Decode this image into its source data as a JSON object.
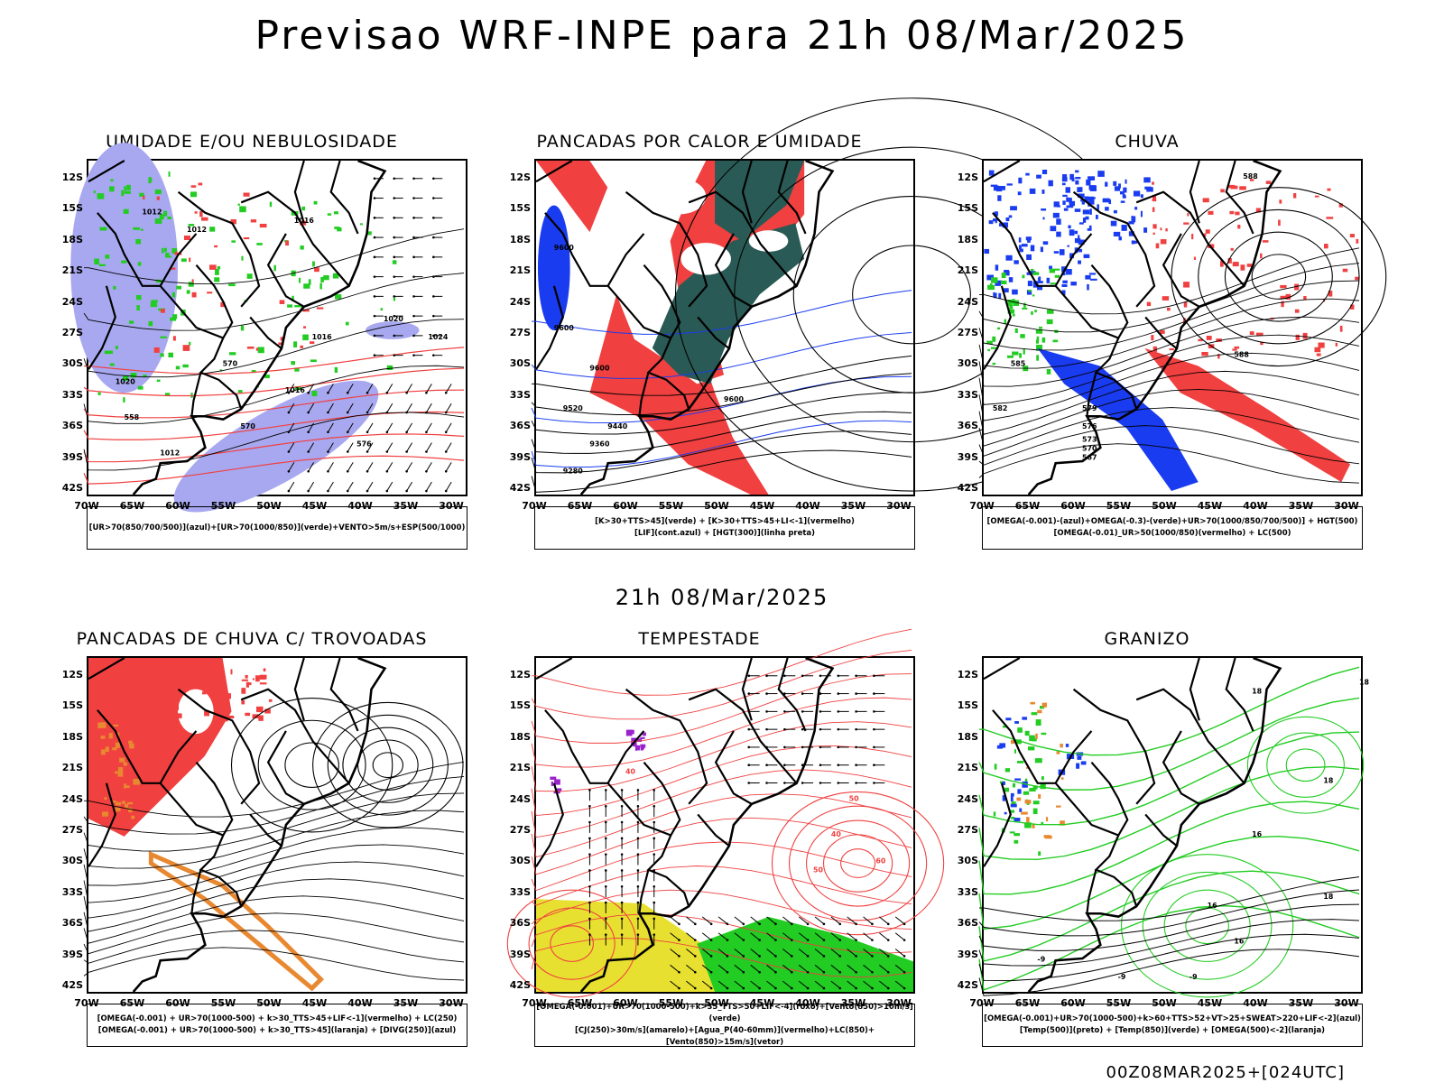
{
  "title": "Previsao WRF-INPE  para 21h 08/Mar/2025",
  "mid_date": "21h 08/Mar/2025",
  "run_id": "00Z08MAR2025+[024UTC]",
  "lat_labels": [
    "12S",
    "15S",
    "18S",
    "21S",
    "24S",
    "27S",
    "30S",
    "33S",
    "36S",
    "39S",
    "42S"
  ],
  "lon_labels": [
    "70W",
    "65W",
    "60W",
    "55W",
    "50W",
    "45W",
    "40W",
    "35W",
    "30W"
  ],
  "panels": [
    {
      "title": "UMIDADE E/OU NEBULOSIDADE",
      "legend": [
        "[UR>70(850/700/500)](azul)+[UR>70(1000/850)](verde)+VENTO>5m/s+ESP(500/1000)"
      ],
      "contour_labels": [
        "1012",
        "1012",
        "1016",
        "1016",
        "1016",
        "1020",
        "1020",
        "1024",
        "1012",
        "576",
        "570",
        "570",
        "558"
      ]
    },
    {
      "title": "PANCADAS POR CALOR E UMIDADE",
      "legend": [
        "[K>30+TTS>45](verde) + [K>30+TTS>45+LI<-1](vermelho)",
        "[LIF](cont.azul) + [HGT(300)](linha preta)"
      ],
      "contour_labels": [
        "9600",
        "9600",
        "9600",
        "9600",
        "9520",
        "9440",
        "9360",
        "9280"
      ]
    },
    {
      "title": "CHUVA",
      "legend": [
        "[OMEGA(-0.001)-(azul)+OMEGA(-0.3)-(verde)+UR>70(1000/850/700/500)] + HGT(500)",
        "[OMEGA(-0.01)_UR>50(1000/850)(vermelho) + LC(500)"
      ],
      "contour_labels": [
        "588",
        "588",
        "585",
        "582",
        "579",
        "576",
        "573",
        "570",
        "567"
      ]
    },
    {
      "title": "PANCADAS DE CHUVA C/ TROVOADAS",
      "legend": [
        "[OMEGA(-0.001) + UR>70(1000-500) + k>30_TTS>45+LIF<-1](vermelho) + LC(250)",
        "[OMEGA(-0.001) + UR>70(1000-500) + k>30_TTS>45](laranja) + [DIVG(250)](azul)"
      ],
      "contour_labels": []
    },
    {
      "title": "TEMPESTADE",
      "legend": [
        "[OMEGA(-0.001)+UR>70(1000-500)+k>35_TTS>50+LIF<-4](roxo)+[Vento(850)>10m/s](verde)",
        "[CJ(250)>30m/s](amarelo)+[Agua_P(40-60mm)](vermelho)+LC(850)+[Vento(850)>15m/s](vetor)"
      ],
      "contour_labels": [
        "40",
        "50",
        "50",
        "60",
        "40"
      ]
    },
    {
      "title": "GRANIZO",
      "legend": [
        "[OMEGA(-0.001)+UR>70(1000-500)+k>60+TTS>52+VT>25+SWEAT>220+LIF<-2](azul)",
        "[Temp(500)](preto) + [Temp(850)](verde) + [OMEGA(500)<-2](laranja)"
      ],
      "contour_labels": [
        "18",
        "18",
        "18",
        "18",
        "16",
        "16",
        "16",
        "-9",
        "-9",
        "-9"
      ]
    }
  ],
  "colors": {
    "blue_fill": "#a8a8f0",
    "green": "#22cc22",
    "red": "#f04040",
    "dark_teal": "#2a5a55",
    "yellow": "#e8e030",
    "purple": "#9922cc",
    "orange": "#e88830",
    "deep_blue": "#1a3cf0"
  }
}
